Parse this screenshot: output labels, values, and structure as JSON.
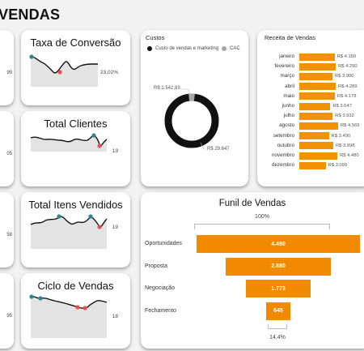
{
  "page_title": "VENDAS",
  "edge_cards": [
    {
      "value": "99"
    },
    {
      "value": "05"
    },
    {
      "value": "58"
    },
    {
      "value": "95"
    }
  ],
  "kpis": [
    {
      "title": "Taxa de Conversão",
      "value": "23,02%"
    },
    {
      "title": "Total Clientes",
      "value": "19"
    },
    {
      "title": "Total Itens Vendidos",
      "value": "19"
    },
    {
      "title": "Ciclo de Vendas",
      "value": "18"
    }
  ],
  "custos": {
    "title": "Custos",
    "legend": [
      {
        "label": "Custo de vendas e marketing",
        "color": "#111111"
      },
      {
        "label": "CAC",
        "color": "#a6a6a6"
      }
    ],
    "label_small": "R$ 1.542,83",
    "label_large": "R$ 29.647"
  },
  "receita": {
    "title": "Receita de Vendas",
    "months": [
      {
        "name": "janeiro",
        "value": 4150,
        "label": "R$ 4.150"
      },
      {
        "name": "fevereiro",
        "value": 4290,
        "label": "R$ 4.290"
      },
      {
        "name": "março",
        "value": 3900,
        "label": "R$ 3.900"
      },
      {
        "name": "abril",
        "value": 4289,
        "label": "R$ 4.289"
      },
      {
        "name": "maio",
        "value": 4178,
        "label": "R$ 4.178"
      },
      {
        "name": "junho",
        "value": 3647,
        "label": "R$ 3.647"
      },
      {
        "name": "julho",
        "value": 3932,
        "label": "R$ 3.932"
      },
      {
        "name": "agosto",
        "value": 4569,
        "label": "R$ 4.569"
      },
      {
        "name": "setembro",
        "value": 3490,
        "label": "R$ 3.490"
      },
      {
        "name": "outubro",
        "value": 3998,
        "label": "R$ 3.998"
      },
      {
        "name": "novembro",
        "value": 4480,
        "label": "R$ 4.480"
      },
      {
        "name": "dezembro",
        "value": 3099,
        "label": "R$ 3.099"
      }
    ]
  },
  "funil": {
    "title": "Funil de Vendas",
    "top_pct": "100%",
    "bottom_pct": "14,4%",
    "stages": [
      {
        "name": "Oportunidades",
        "value": 4490,
        "label": "4.490"
      },
      {
        "name": "Proposta",
        "value": 2880,
        "label": "2.880"
      },
      {
        "name": "Negociação",
        "value": 1773,
        "label": "1.773"
      },
      {
        "name": "Fechamento",
        "value": 645,
        "label": "645"
      }
    ]
  },
  "colors": {
    "accent": "#f28a00",
    "marker_teal": "#2a8a8a",
    "marker_red": "#e85050"
  }
}
